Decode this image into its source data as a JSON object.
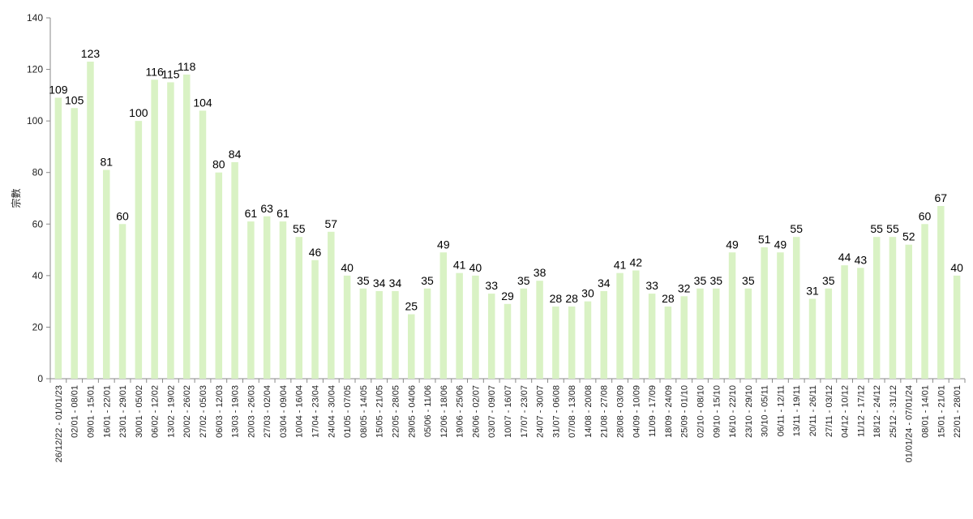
{
  "chart_data": {
    "type": "bar",
    "title": "",
    "xlabel": "",
    "ylabel": "宗數",
    "ylim": [
      0,
      140
    ],
    "yticks": [
      0,
      20,
      40,
      60,
      80,
      100,
      120,
      140
    ],
    "grid": false,
    "legend": "none",
    "bar_color": "#d9f2c4",
    "categories": [
      "26/12/22 - 01/01/23",
      "02/01 - 08/01",
      "09/01 - 15/01",
      "16/01 - 22/01",
      "23/01 - 29/01",
      "30/01 - 05/02",
      "06/02 - 12/02",
      "13/02 - 19/02",
      "20/02 - 26/02",
      "27/02 - 05/03",
      "06/03 - 12/03",
      "13/03 - 19/03",
      "20/03 - 26/03",
      "27/03 - 02/04",
      "03/04 - 09/04",
      "10/04 - 16/04",
      "17/04 - 23/04",
      "24/04 - 30/04",
      "01/05 - 07/05",
      "08/05 - 14/05",
      "15/05 - 21/05",
      "22/05 - 28/05",
      "29/05 - 04/06",
      "05/06 - 11/06",
      "12/06 - 18/06",
      "19/06 - 25/06",
      "26/06 - 02/07",
      "03/07 - 09/07",
      "10/07 - 16/07",
      "17/07 - 23/07",
      "24/07 - 30/07",
      "31/07 - 06/08",
      "07/08 - 13/08",
      "14/08 - 20/08",
      "21/08 - 27/08",
      "28/08 - 03/09",
      "04/09 - 10/09",
      "11/09 - 17/09",
      "18/09 - 24/09",
      "25/09 - 01/10",
      "02/10 - 08/10",
      "09/10 - 15/10",
      "16/10 - 22/10",
      "23/10 - 29/10",
      "30/10 - 05/11",
      "06/11 - 12/11",
      "13/11 - 19/11",
      "20/11 - 26/11",
      "27/11 - 03/12",
      "04/12 - 10/12",
      "11/12 - 17/12",
      "18/12 - 24/12",
      "25/12 - 31/12",
      "01/01/24 - 07/01/24",
      "08/01 - 14/01",
      "15/01 - 21/01",
      "22/01 - 28/01"
    ],
    "values": [
      109,
      105,
      123,
      81,
      60,
      100,
      116,
      115,
      118,
      104,
      80,
      84,
      61,
      63,
      61,
      55,
      46,
      57,
      40,
      35,
      34,
      34,
      25,
      35,
      49,
      41,
      40,
      33,
      29,
      35,
      38,
      28,
      28,
      30,
      34,
      41,
      42,
      33,
      28,
      32,
      35,
      35,
      49,
      35,
      51,
      49,
      55,
      31,
      35,
      44,
      43,
      55,
      55,
      52,
      60,
      67,
      40
    ]
  }
}
